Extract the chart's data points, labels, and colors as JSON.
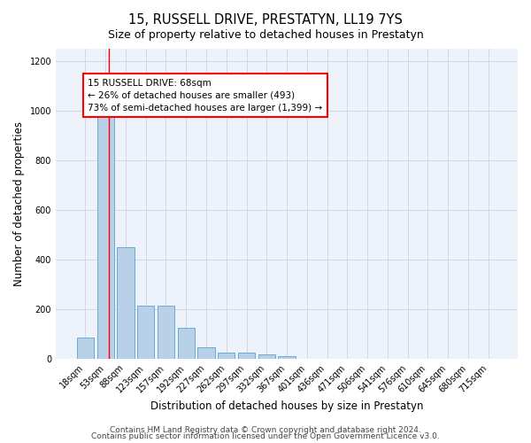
{
  "title": "15, RUSSELL DRIVE, PRESTATYN, LL19 7YS",
  "subtitle": "Size of property relative to detached houses in Prestatyn",
  "xlabel": "Distribution of detached houses by size in Prestatyn",
  "ylabel": "Number of detached properties",
  "footnote1": "Contains HM Land Registry data © Crown copyright and database right 2024.",
  "footnote2": "Contains public sector information licensed under the Open Government Licence v3.0.",
  "bar_labels": [
    "18sqm",
    "53sqm",
    "88sqm",
    "123sqm",
    "157sqm",
    "192sqm",
    "227sqm",
    "262sqm",
    "297sqm",
    "332sqm",
    "367sqm",
    "401sqm",
    "436sqm",
    "471sqm",
    "506sqm",
    "541sqm",
    "576sqm",
    "610sqm",
    "645sqm",
    "680sqm",
    "715sqm"
  ],
  "bar_values": [
    85,
    980,
    450,
    215,
    215,
    125,
    47,
    25,
    24,
    20,
    10,
    0,
    0,
    0,
    0,
    0,
    0,
    0,
    0,
    0,
    0
  ],
  "bar_color": "#b8d0e8",
  "bar_edge_color": "#6aaad4",
  "annotation_text": "15 RUSSELL DRIVE: 68sqm\n← 26% of detached houses are smaller (493)\n73% of semi-detached houses are larger (1,399) →",
  "annotation_box_color": "white",
  "annotation_box_edge_color": "red",
  "red_line_x": 1.18,
  "ylim": [
    0,
    1250
  ],
  "yticks": [
    0,
    200,
    400,
    600,
    800,
    1000,
    1200
  ],
  "background_color": "#eef2fa",
  "grid_color": "#d0d8e8",
  "title_fontsize": 10.5,
  "subtitle_fontsize": 9,
  "axis_label_fontsize": 8.5,
  "tick_fontsize": 7,
  "footnote_fontsize": 6.5,
  "annotation_fontsize": 7.5
}
